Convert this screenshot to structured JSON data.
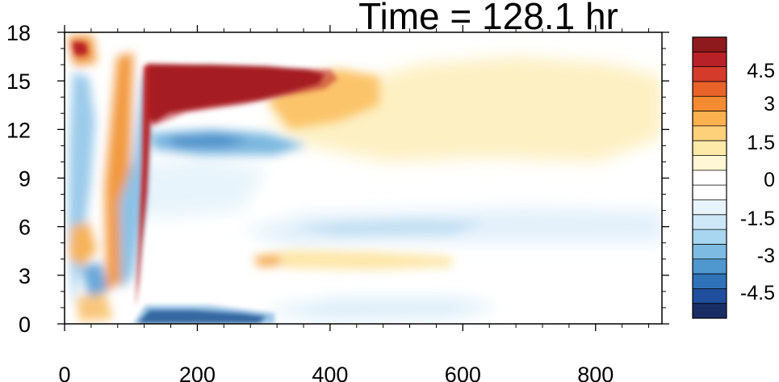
{
  "chart_data": {
    "type": "heatmap",
    "title": "Time = 128.1 hr",
    "xlabel": "",
    "ylabel": "",
    "xlim": [
      0,
      900
    ],
    "ylim": [
      0,
      18
    ],
    "x_ticks": [
      "0",
      "200",
      "400",
      "600",
      "800"
    ],
    "y_ticks": [
      "0",
      "3",
      "6",
      "9",
      "12",
      "15",
      "18"
    ],
    "colorbar": {
      "labels": [
        "4.5",
        "3",
        "1.5",
        "0",
        "-1.5",
        "-3",
        "-4.5"
      ],
      "colors": [
        "#1a2e66",
        "#1f4e9c",
        "#2f72b8",
        "#4f97cf",
        "#7dbbe3",
        "#a8d6f0",
        "#cde7f6",
        "#e8f4fb",
        "#ffffff",
        "#ffffff",
        "#fff7d6",
        "#fde9a8",
        "#fdd07a",
        "#fbb14f",
        "#f48b32",
        "#e8632a",
        "#d43b2a",
        "#b82127",
        "#8e1a1d"
      ]
    },
    "features": [
      {
        "label": "strong-positive-band",
        "x": [
          130,
          390
        ],
        "y": [
          12.5,
          16
        ],
        "value": 5
      },
      {
        "label": "positive-extension",
        "x": [
          330,
          800
        ],
        "y": [
          11,
          16.5
        ],
        "value": 1
      },
      {
        "label": "negative-band-12",
        "x": [
          180,
          420
        ],
        "y": [
          10,
          12.5
        ],
        "value": -2
      },
      {
        "label": "negative-band-6",
        "x": [
          300,
          900
        ],
        "y": [
          5,
          7
        ],
        "value": -0.8
      },
      {
        "label": "positive-band-4",
        "x": [
          300,
          560
        ],
        "y": [
          3.5,
          4.5
        ],
        "value": 1.2
      },
      {
        "label": "strong-negative-surface",
        "x": [
          120,
          330
        ],
        "y": [
          0,
          1.2
        ],
        "value": -5
      },
      {
        "label": "negative-surface-tail",
        "x": [
          330,
          600
        ],
        "y": [
          0.5,
          1.5
        ],
        "value": -0.8
      },
      {
        "label": "left-front-positive",
        "x": [
          60,
          130
        ],
        "y": [
          0,
          18
        ],
        "value": 2
      },
      {
        "label": "left-front-negative",
        "x": [
          10,
          60
        ],
        "y": [
          0,
          18
        ],
        "value": -2
      }
    ]
  }
}
